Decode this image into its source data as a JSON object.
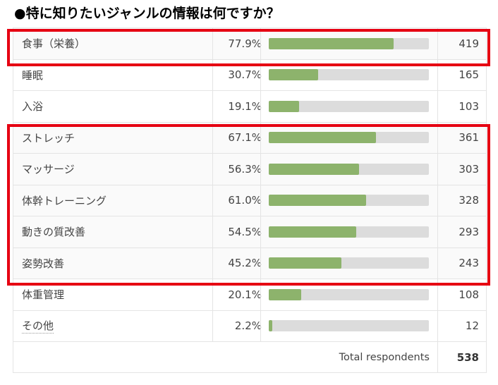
{
  "title": "●特に知りたいジャンルの情報は何ですか？",
  "colors": {
    "bar_fill": "#8db36c",
    "bar_track": "#dcdcdc",
    "highlight": "#e60012"
  },
  "chart_data": {
    "type": "bar",
    "orientation": "horizontal",
    "categories": [
      "食事（栄養）",
      "睡眠",
      "入浴",
      "ストレッチ",
      "マッサージ",
      "体幹トレーニング",
      "動きの質改善",
      "姿勢改善",
      "体重管理",
      "その他"
    ],
    "rows": [
      {
        "label": "食事（栄養）",
        "pct_label": "77.9%",
        "pct": 77.9,
        "count": "419"
      },
      {
        "label": "睡眠",
        "pct_label": "30.7%",
        "pct": 30.7,
        "count": "165"
      },
      {
        "label": "入浴",
        "pct_label": "19.1%",
        "pct": 19.1,
        "count": "103"
      },
      {
        "label": "ストレッチ",
        "pct_label": "67.1%",
        "pct": 67.1,
        "count": "361"
      },
      {
        "label": "マッサージ",
        "pct_label": "56.3%",
        "pct": 56.3,
        "count": "303"
      },
      {
        "label": "体幹トレーニング",
        "pct_label": "61.0%",
        "pct": 61.0,
        "count": "328"
      },
      {
        "label": "動きの質改善",
        "pct_label": "54.5%",
        "pct": 54.5,
        "count": "293"
      },
      {
        "label": "姿勢改善",
        "pct_label": "45.2%",
        "pct": 45.2,
        "count": "243"
      },
      {
        "label": "体重管理",
        "pct_label": "20.1%",
        "pct": 20.1,
        "count": "108"
      },
      {
        "label": "その他",
        "pct_label": "2.2%",
        "pct": 2.2,
        "count": "12"
      }
    ],
    "xlim": [
      0,
      100
    ],
    "total_label": "Total respondents",
    "total_count": "538"
  }
}
